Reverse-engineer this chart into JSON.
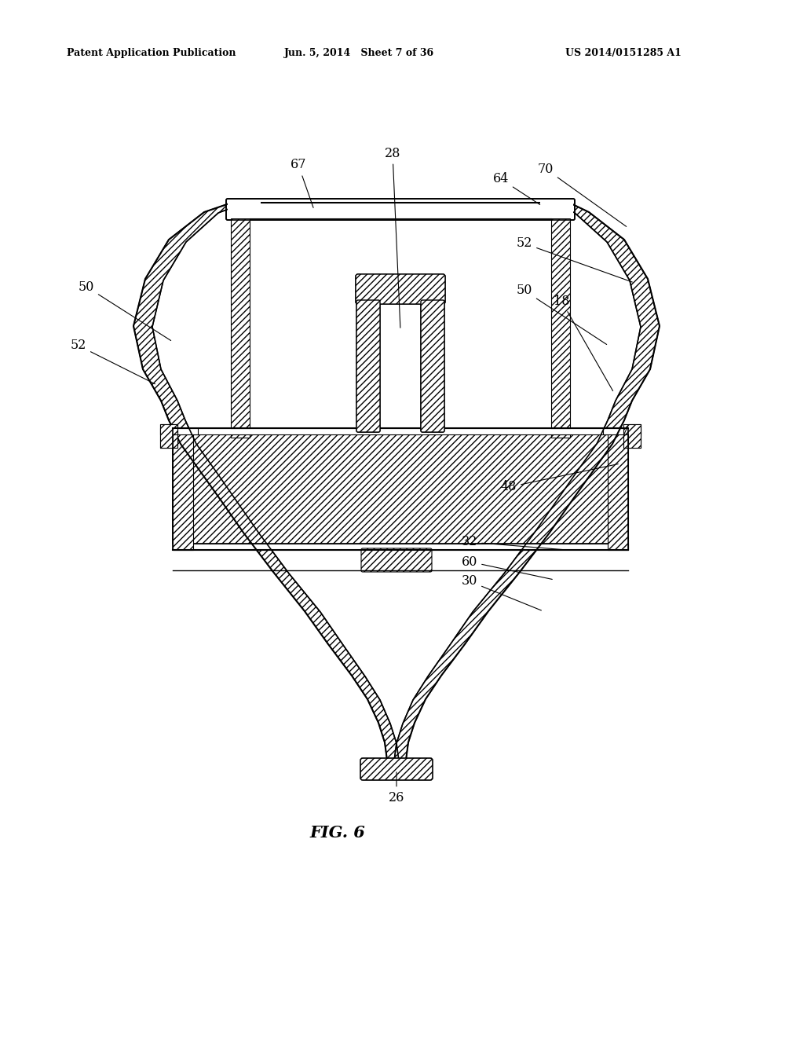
{
  "title_left": "Patent Application Publication",
  "title_center": "Jun. 5, 2014   Sheet 7 of 36",
  "title_right": "US 2014/0151285 A1",
  "fig_label": "FIG. 6",
  "background_color": "#ffffff"
}
